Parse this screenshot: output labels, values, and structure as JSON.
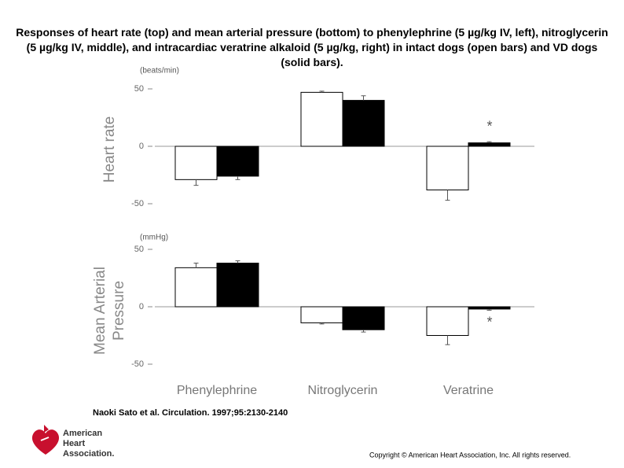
{
  "caption": "Responses of heart rate (top) and mean arterial pressure (bottom) to phenylephrine (5 µg/kg IV, left), nitroglycerin (5 µg/kg IV, middle), and intracardiac veratrine alkaloid (5 µg/kg, right) in intact dogs (open bars) and VD dogs (solid bars).",
  "chart_data": [
    {
      "type": "bar",
      "ylabel": "Heart rate",
      "unit": "(beats/min)",
      "categories": [
        null,
        null,
        null
      ],
      "series": [
        {
          "color": "#ffffff",
          "values": [
            -29,
            47,
            -38
          ],
          "errors": [
            5,
            1,
            9
          ]
        },
        {
          "color": "#000000",
          "values": [
            -26,
            40,
            3
          ],
          "errors": [
            3,
            4,
            1
          ]
        }
      ],
      "ylim": [
        -50,
        50
      ],
      "yticks": [
        -50,
        0,
        50
      ],
      "annotation": "*"
    },
    {
      "type": "bar",
      "ylabel": [
        "Mean Arterial",
        "Pressure"
      ],
      "unit": "(mmHg)",
      "categories": [
        "Phenylephrine",
        "Nitroglycerin",
        "Veratrine"
      ],
      "series": [
        {
          "color": "#ffffff",
          "values": [
            34,
            -14,
            -25
          ],
          "errors": [
            4,
            1,
            8
          ]
        },
        {
          "color": "#000000",
          "values": [
            38,
            -20,
            -2
          ],
          "errors": [
            2,
            2,
            1
          ]
        }
      ],
      "ylim": [
        -50,
        50
      ],
      "yticks": [
        -50,
        0,
        50
      ],
      "annotation": "*"
    }
  ],
  "citation": "Naoki Sato et al. Circulation. 1997;95:2130-2140",
  "logo": [
    "American",
    "Heart",
    "Association."
  ],
  "copyright": "Copyright © American Heart Association, Inc. All rights reserved."
}
